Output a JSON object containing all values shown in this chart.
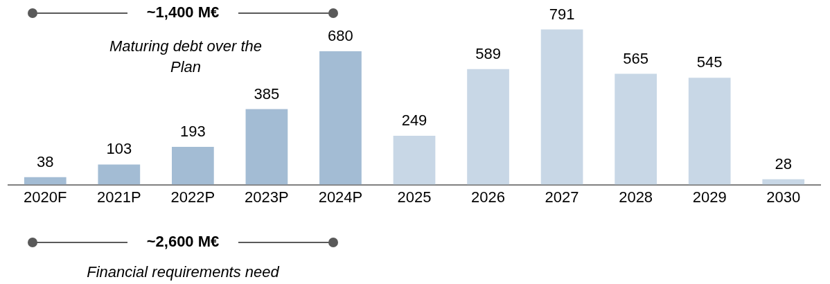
{
  "chart_data": {
    "type": "bar",
    "categories": [
      "2020F",
      "2021P",
      "2022P",
      "2023P",
      "2024P",
      "2025",
      "2026",
      "2027",
      "2028",
      "2029",
      "2030"
    ],
    "values": [
      38,
      103,
      193,
      385,
      680,
      249,
      589,
      791,
      565,
      545,
      28
    ],
    "colors": [
      "#a3bcd4",
      "#a3bcd4",
      "#a3bcd4",
      "#a3bcd4",
      "#a3bcd4",
      "#c8d7e6",
      "#c8d7e6",
      "#c8d7e6",
      "#c8d7e6",
      "#c8d7e6",
      "#c8d7e6"
    ],
    "data_labels": true,
    "grid": false,
    "legend": false,
    "annotations": [
      "~1,400 M€",
      "Maturing debt over the Plan",
      "~2,600 M€",
      "Financial requirements need"
    ]
  }
}
